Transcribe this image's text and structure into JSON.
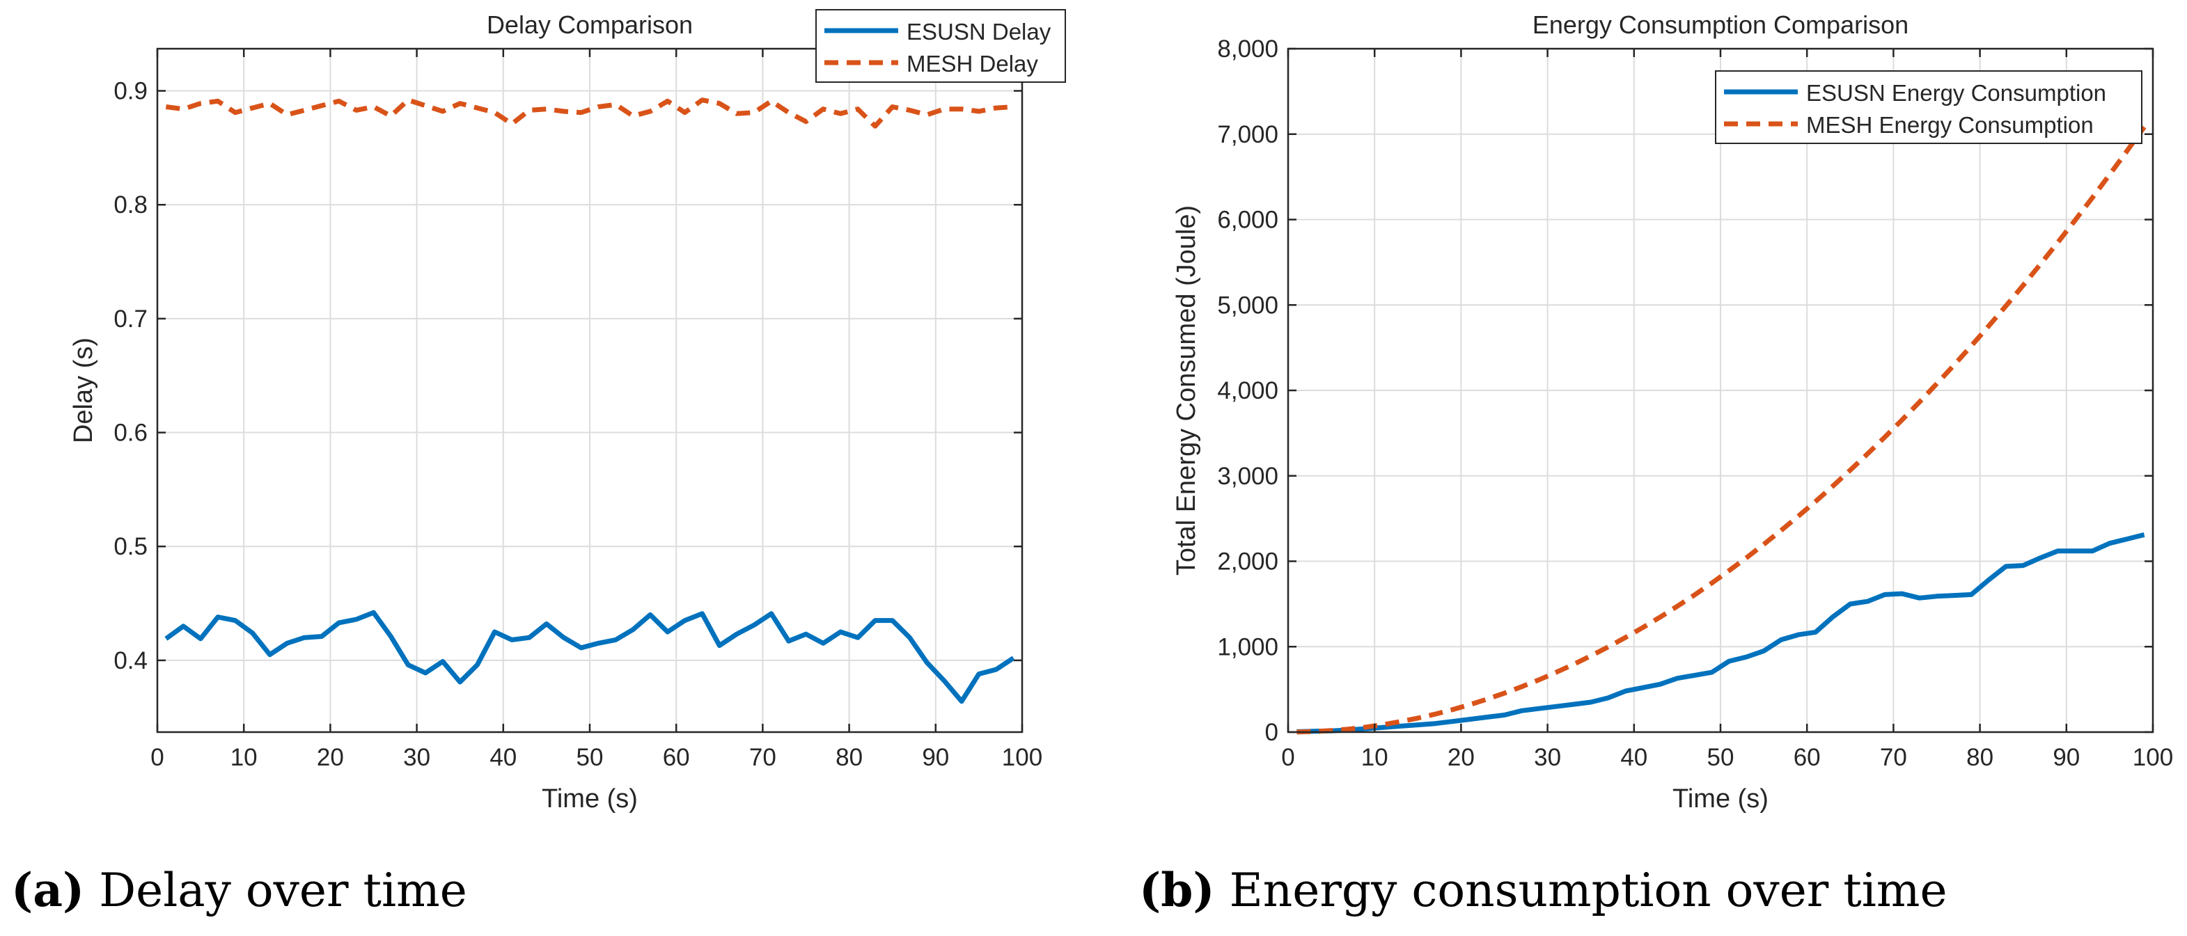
{
  "colors": {
    "esusn": "#0072bd",
    "mesh": "#d95319",
    "grid": "#dcdcdc",
    "axis": "#262626"
  },
  "captions": {
    "a": {
      "letter": "(a)",
      "text": " Delay over time"
    },
    "b": {
      "letter": "(b)",
      "text": " Energy consumption over time"
    }
  },
  "chart_data": [
    {
      "type": "line",
      "title": "Delay Comparison",
      "xlabel": "Time (s)",
      "ylabel": "Delay (s)",
      "xlim": [
        0,
        100
      ],
      "ylim": [
        0.337,
        0.937
      ],
      "xticks": [
        0,
        10,
        20,
        30,
        40,
        50,
        60,
        70,
        80,
        90,
        100
      ],
      "xtick_labels": [
        "0",
        "10",
        "20",
        "30",
        "40",
        "50",
        "60",
        "70",
        "80",
        "90",
        "100"
      ],
      "yticks": [
        0.4,
        0.5,
        0.6,
        0.7,
        0.8,
        0.9
      ],
      "ytick_labels": [
        "0.4",
        "0.5",
        "0.6",
        "0.7",
        "0.8",
        "0.9"
      ],
      "grid": true,
      "legend_position": "top-right",
      "series": [
        {
          "name": "ESUSN Delay",
          "style": "solid",
          "x": [
            1,
            3,
            5,
            7,
            9,
            11,
            13,
            15,
            17,
            19,
            21,
            23,
            25,
            27,
            29,
            31,
            33,
            35,
            37,
            39,
            41,
            43,
            45,
            47,
            49,
            51,
            53,
            55,
            57,
            59,
            61,
            63,
            65,
            67,
            69,
            71,
            73,
            75,
            77,
            79,
            81,
            83,
            85,
            87,
            89,
            91,
            93,
            95,
            97,
            99
          ],
          "values": [
            0.419,
            0.43,
            0.419,
            0.438,
            0.435,
            0.424,
            0.405,
            0.415,
            0.42,
            0.421,
            0.433,
            0.436,
            0.442,
            0.421,
            0.396,
            0.389,
            0.399,
            0.381,
            0.396,
            0.425,
            0.418,
            0.42,
            0.432,
            0.42,
            0.411,
            0.415,
            0.418,
            0.427,
            0.44,
            0.425,
            0.435,
            0.441,
            0.413,
            0.423,
            0.431,
            0.441,
            0.417,
            0.423,
            0.415,
            0.425,
            0.42,
            0.435,
            0.435,
            0.42,
            0.398,
            0.382,
            0.364,
            0.388,
            0.392,
            0.402
          ]
        },
        {
          "name": "MESH Delay",
          "style": "dashed",
          "x": [
            1,
            3,
            5,
            7,
            9,
            11,
            13,
            15,
            17,
            19,
            21,
            23,
            25,
            27,
            29,
            31,
            33,
            35,
            37,
            39,
            41,
            43,
            45,
            47,
            49,
            51,
            53,
            55,
            57,
            59,
            61,
            63,
            65,
            67,
            69,
            71,
            73,
            75,
            77,
            79,
            81,
            83,
            85,
            87,
            89,
            91,
            93,
            95,
            97,
            99
          ],
          "values": [
            0.886,
            0.884,
            0.889,
            0.891,
            0.881,
            0.885,
            0.889,
            0.879,
            0.883,
            0.887,
            0.891,
            0.883,
            0.886,
            0.878,
            0.892,
            0.887,
            0.882,
            0.889,
            0.885,
            0.881,
            0.871,
            0.883,
            0.884,
            0.882,
            0.881,
            0.886,
            0.888,
            0.878,
            0.882,
            0.891,
            0.881,
            0.892,
            0.889,
            0.88,
            0.881,
            0.891,
            0.881,
            0.873,
            0.884,
            0.88,
            0.884,
            0.869,
            0.886,
            0.883,
            0.879,
            0.884,
            0.884,
            0.882,
            0.885,
            0.886
          ]
        }
      ]
    },
    {
      "type": "line",
      "title": "Energy Consumption Comparison",
      "xlabel": "Time (s)",
      "ylabel": "Total Energy Consumed (Joule)",
      "xlim": [
        0,
        100
      ],
      "ylim": [
        0,
        8000
      ],
      "xticks": [
        0,
        10,
        20,
        30,
        40,
        50,
        60,
        70,
        80,
        90,
        100
      ],
      "xtick_labels": [
        "0",
        "10",
        "20",
        "30",
        "40",
        "50",
        "60",
        "70",
        "80",
        "90",
        "100"
      ],
      "yticks": [
        0,
        1000,
        2000,
        3000,
        4000,
        5000,
        6000,
        7000,
        8000
      ],
      "ytick_labels": [
        "0",
        "1,000",
        "2,000",
        "3,000",
        "4,000",
        "5,000",
        "6,000",
        "7,000",
        "8,000"
      ],
      "grid": true,
      "legend_position": "top-right",
      "series": [
        {
          "name": "ESUSN Energy Consumption",
          "style": "solid",
          "x": [
            1,
            3,
            5,
            7,
            9,
            11,
            13,
            15,
            17,
            19,
            21,
            23,
            25,
            27,
            29,
            31,
            33,
            35,
            37,
            39,
            41,
            43,
            45,
            47,
            49,
            51,
            53,
            55,
            57,
            59,
            61,
            63,
            65,
            67,
            69,
            71,
            73,
            75,
            77,
            79,
            81,
            83,
            85,
            87,
            89,
            91,
            93,
            95,
            97,
            99
          ],
          "values": [
            5,
            10,
            15,
            25,
            40,
            55,
            70,
            85,
            100,
            125,
            150,
            175,
            200,
            250,
            275,
            300,
            325,
            350,
            400,
            480,
            520,
            560,
            630,
            665,
            700,
            830,
            880,
            950,
            1080,
            1140,
            1170,
            1350,
            1500,
            1530,
            1610,
            1620,
            1570,
            1590,
            1600,
            1610,
            1780,
            1940,
            1950,
            2040,
            2120,
            2120,
            2120,
            2210,
            2260,
            2310
          ]
        },
        {
          "name": "MESH Energy Consumption",
          "style": "dashed",
          "x": [
            1,
            3,
            5,
            7,
            9,
            11,
            13,
            15,
            17,
            19,
            21,
            23,
            25,
            27,
            29,
            31,
            33,
            35,
            37,
            39,
            41,
            43,
            45,
            47,
            49,
            51,
            53,
            55,
            57,
            59,
            61,
            63,
            65,
            67,
            69,
            71,
            73,
            75,
            77,
            79,
            81,
            83,
            85,
            87,
            89,
            91,
            93,
            95,
            97,
            99
          ],
          "values": [
            1,
            7,
            18,
            35,
            59,
            88,
            123,
            164,
            210,
            263,
            321,
            385,
            455,
            531,
            612,
            700,
            793,
            892,
            996,
            1107,
            1223,
            1345,
            1473,
            1606,
            1745,
            1891,
            2041,
            2198,
            2360,
            2528,
            2701,
            2881,
            3066,
            3257,
            3453,
            3655,
            3863,
            4077,
            4296,
            4521,
            4752,
            4988,
            5230,
            5478,
            5732,
            5991,
            6256,
            6526,
            6802,
            7084
          ]
        }
      ]
    }
  ]
}
